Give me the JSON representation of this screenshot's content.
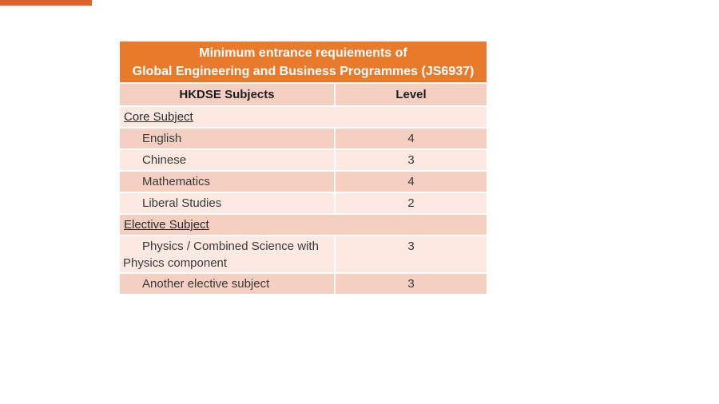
{
  "slide": {
    "background_color": "#FFFFFF",
    "accent_bar_color": "#DF612C"
  },
  "table": {
    "title_lines": [
      "Minimum entrance requiements of",
      "Global Engineering and Business Programmes (JS6937)"
    ],
    "colors": {
      "title_bg": "#E87A2C",
      "title_text": "#FFFFFF",
      "band_dark": "#F5D0C2",
      "band_light": "#FCE9E2",
      "body_text": "#3A3A3A",
      "header_text": "#1D1D1D"
    },
    "columns": [
      {
        "label": "HKDSE Subjects"
      },
      {
        "label": "Level"
      }
    ],
    "rows": [
      {
        "type": "section",
        "label": "Core Subject"
      },
      {
        "type": "subject",
        "label": "English",
        "level": "4"
      },
      {
        "type": "subject",
        "label": "Chinese",
        "level": "3"
      },
      {
        "type": "subject",
        "label": "Mathematics",
        "level": "4"
      },
      {
        "type": "subject",
        "label": "Liberal Studies",
        "level": "2"
      },
      {
        "type": "section",
        "label": "Elective Subject"
      },
      {
        "type": "subject",
        "label": "Physics / Combined Science with Physics component",
        "level": "3"
      },
      {
        "type": "subject",
        "label": "Another elective subject",
        "level": "3"
      }
    ]
  }
}
